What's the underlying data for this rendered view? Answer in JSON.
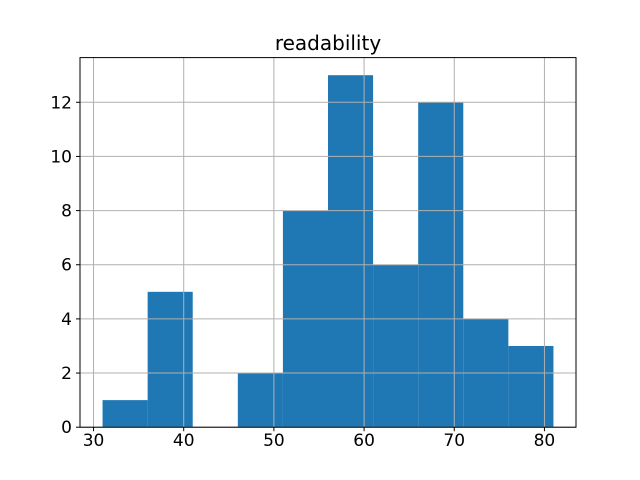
{
  "chart_data": {
    "type": "histogram",
    "title": "readability",
    "xlabel": "",
    "ylabel": "",
    "bin_edges": [
      31,
      36,
      41,
      46,
      51,
      56,
      61,
      66,
      71,
      76,
      81
    ],
    "counts": [
      1,
      5,
      0,
      2,
      8,
      13,
      6,
      12,
      4,
      3
    ],
    "x_ticks": [
      30,
      40,
      50,
      60,
      70,
      80
    ],
    "y_ticks": [
      0,
      2,
      4,
      6,
      8,
      10,
      12
    ],
    "xlim": [
      28.5,
      83.5
    ],
    "ylim": [
      0,
      13.65
    ],
    "grid": true,
    "grid_above_bars": true,
    "legend_position": "none",
    "bar_color": "#1f77b4",
    "grid_color": "#b0b0b0",
    "spine_color": "#000000",
    "text_color": "#000000",
    "background_color": "#ffffff"
  }
}
